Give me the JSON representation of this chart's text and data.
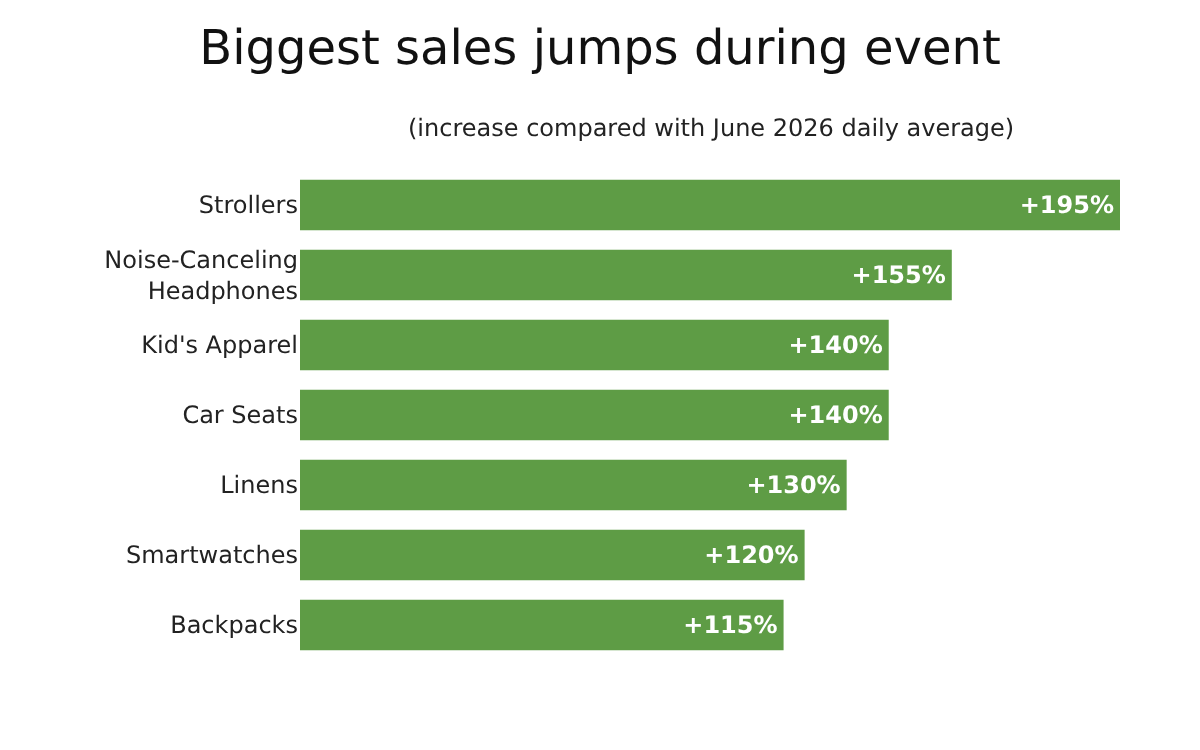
{
  "chart_data": {
    "type": "bar",
    "orientation": "horizontal",
    "title": "Biggest sales jumps during event",
    "subtitle": "(increase compared with June 2026 daily average)",
    "categories": [
      "Strollers",
      "Noise-Canceling Headphones",
      "Kid's Apparel",
      "Car Seats",
      "Linens",
      "Smartwatches",
      "Backpacks"
    ],
    "values": [
      195,
      155,
      140,
      140,
      130,
      120,
      115
    ],
    "value_labels": [
      "+195%",
      "+155%",
      "+140%",
      "+140%",
      "+130%",
      "+120%",
      "+115%"
    ],
    "color": "#5e9c45"
  }
}
